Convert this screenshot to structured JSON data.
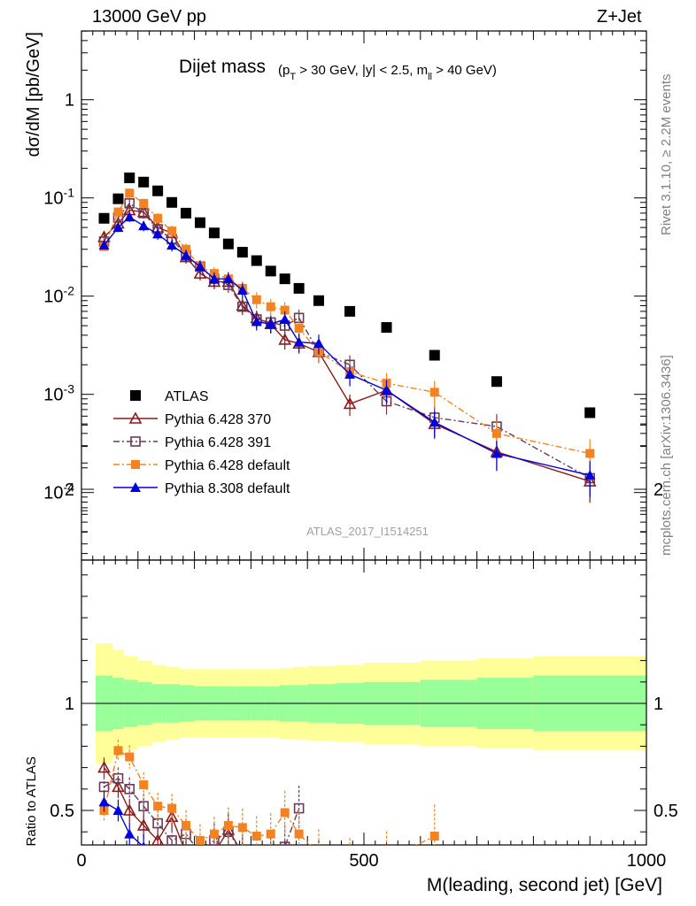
{
  "header": {
    "left": "13000 GeV pp",
    "right": "Z+Jet"
  },
  "side_labels": {
    "rivet": "Rivet 3.1.10, ≥ 2.2M events",
    "mcplots": "mcplots.cern.ch [arXiv:1306.3436]"
  },
  "chart_data": [
    {
      "type": "scatter",
      "panel": "main",
      "title_main": "Dijet mass",
      "title_cuts": "(p_T > 30 GeV, |y| < 2.5, m_ll > 40 GeV)",
      "ylabel": "dσ/dM [pb/GeV]",
      "yscale": "log",
      "ylim": [
        2.5e-05,
        5
      ],
      "xlim": [
        0,
        1000
      ],
      "ytick_labels": [
        "10^-4",
        "10^-3",
        "10^-2",
        "10^-1",
        "1"
      ],
      "watermark": "ATLAS_2017_I1514251",
      "legend_position": "middle-left",
      "series": [
        {
          "name": "ATLAS",
          "color": "#000000",
          "marker": "filled-square",
          "x": [
            40,
            65,
            85,
            110,
            135,
            160,
            185,
            210,
            235,
            260,
            285,
            310,
            335,
            360,
            385,
            420,
            475,
            540,
            625,
            735,
            900
          ],
          "y": [
            0.062,
            0.098,
            0.16,
            0.145,
            0.118,
            0.09,
            0.07,
            0.056,
            0.044,
            0.034,
            0.028,
            0.023,
            0.018,
            0.015,
            0.012,
            0.009,
            0.007,
            0.0048,
            0.0025,
            0.00135,
            0.00065
          ]
        },
        {
          "name": "Pythia 6.428 370",
          "color": "#8b1a1a",
          "marker": "open-triangle",
          "line": "solid",
          "x": [
            40,
            65,
            85,
            110,
            135,
            160,
            185,
            210,
            235,
            260,
            285,
            310,
            335,
            360,
            385,
            420,
            475,
            540,
            625,
            735,
            900
          ],
          "y": [
            0.04,
            0.055,
            0.075,
            0.072,
            0.05,
            0.044,
            0.025,
            0.017,
            0.014,
            0.014,
            0.008,
            0.006,
            0.0052,
            0.0036,
            0.0033,
            0.0027,
            0.0008,
            0.0011,
            0.0005,
            0.00026,
            0.00013
          ]
        },
        {
          "name": "Pythia 6.428 391",
          "color": "#6b3a55",
          "marker": "open-square",
          "line": "dash-dot",
          "x": [
            40,
            65,
            85,
            110,
            135,
            160,
            185,
            210,
            235,
            260,
            285,
            310,
            335,
            360,
            385,
            420,
            475,
            540,
            625,
            735,
            900
          ],
          "y": [
            0.036,
            0.063,
            0.088,
            0.07,
            0.048,
            0.038,
            0.026,
            0.02,
            0.015,
            0.013,
            0.0078,
            0.0058,
            0.0054,
            0.005,
            0.006,
            0.0027,
            0.002,
            0.00085,
            0.00058,
            0.00047,
            0.00014
          ]
        },
        {
          "name": "Pythia 6.428 default",
          "color": "#f58220",
          "marker": "filled-square",
          "line": "dash-dot",
          "x": [
            40,
            65,
            85,
            110,
            135,
            160,
            185,
            210,
            235,
            260,
            285,
            310,
            335,
            360,
            385,
            420,
            475,
            540,
            625,
            735,
            900
          ],
          "y": [
            0.032,
            0.072,
            0.112,
            0.088,
            0.062,
            0.046,
            0.03,
            0.02,
            0.017,
            0.015,
            0.012,
            0.0092,
            0.0078,
            0.0072,
            0.0047,
            0.0027,
            0.0017,
            0.0013,
            0.00105,
            0.0004,
            0.00025
          ]
        },
        {
          "name": "Pythia 8.308 default",
          "color": "#0000dd",
          "marker": "filled-triangle",
          "line": "solid",
          "x": [
            40,
            65,
            85,
            110,
            135,
            160,
            185,
            210,
            235,
            260,
            285,
            310,
            335,
            360,
            385,
            420,
            475,
            540,
            625,
            735,
            900
          ],
          "y": [
            0.033,
            0.05,
            0.064,
            0.052,
            0.043,
            0.033,
            0.026,
            0.02,
            0.015,
            0.015,
            0.0115,
            0.0055,
            0.0052,
            0.0058,
            0.0034,
            0.0033,
            0.0016,
            0.0011,
            0.00052,
            0.00025,
            0.00015
          ]
        }
      ]
    },
    {
      "type": "scatter",
      "panel": "ratio",
      "ylabel": "Ratio to ATLAS",
      "xlabel": "M(leading, second jet) [GeV]",
      "xlim": [
        0,
        1000
      ],
      "ylim": [
        0.35,
        2.35
      ],
      "xtick_labels": [
        "0",
        "500",
        "1000"
      ],
      "ytick_labels": [
        "0.5",
        "1",
        "2"
      ],
      "band_edges": [
        25,
        55,
        75,
        100,
        125,
        150,
        175,
        200,
        225,
        250,
        275,
        300,
        325,
        350,
        375,
        400,
        450,
        500,
        600,
        700,
        800,
        1000
      ],
      "band_inner_halfwidth": [
        0.13,
        0.12,
        0.11,
        0.1,
        0.09,
        0.09,
        0.085,
        0.08,
        0.08,
        0.08,
        0.08,
        0.08,
        0.08,
        0.085,
        0.085,
        0.09,
        0.095,
        0.1,
        0.11,
        0.12,
        0.13
      ],
      "band_outer_halfwidth": [
        0.28,
        0.25,
        0.22,
        0.2,
        0.18,
        0.17,
        0.16,
        0.16,
        0.16,
        0.16,
        0.16,
        0.16,
        0.16,
        0.165,
        0.17,
        0.175,
        0.18,
        0.19,
        0.2,
        0.21,
        0.22
      ],
      "series": [
        {
          "name": "Pythia 6.428 370",
          "color": "#8b1a1a",
          "x": [
            40,
            65,
            85,
            110,
            135,
            160,
            185,
            210,
            235,
            260,
            285
          ],
          "y": [
            0.7,
            0.61,
            0.5,
            0.43,
            0.36,
            0.47,
            0.3,
            0.3,
            0.3,
            0.41,
            0.3
          ]
        },
        {
          "name": "Pythia 6.428 391",
          "color": "#6b3a55",
          "x": [
            40,
            65,
            85,
            110,
            135,
            160,
            185,
            210,
            235,
            260,
            285,
            310,
            335,
            360,
            385
          ],
          "y": [
            0.61,
            0.65,
            0.6,
            0.52,
            0.44,
            0.36,
            0.39,
            0.3,
            0.36,
            0.4,
            0.3,
            0.25,
            0.3,
            0.33,
            0.51
          ]
        },
        {
          "name": "Pythia 6.428 default",
          "color": "#f58220",
          "x": [
            40,
            65,
            85,
            110,
            135,
            160,
            185,
            210,
            235,
            260,
            285,
            310,
            335,
            360,
            385,
            420,
            475,
            540,
            625
          ],
          "y": [
            0.5,
            0.78,
            0.75,
            0.62,
            0.52,
            0.51,
            0.43,
            0.36,
            0.39,
            0.43,
            0.42,
            0.38,
            0.39,
            0.49,
            0.39,
            0.3,
            0.25,
            0.27,
            0.38
          ]
        },
        {
          "name": "Pythia 8.308 default",
          "color": "#0000dd",
          "x": [
            40,
            65,
            85,
            110
          ],
          "y": [
            0.54,
            0.5,
            0.39,
            0.33
          ]
        }
      ]
    }
  ]
}
